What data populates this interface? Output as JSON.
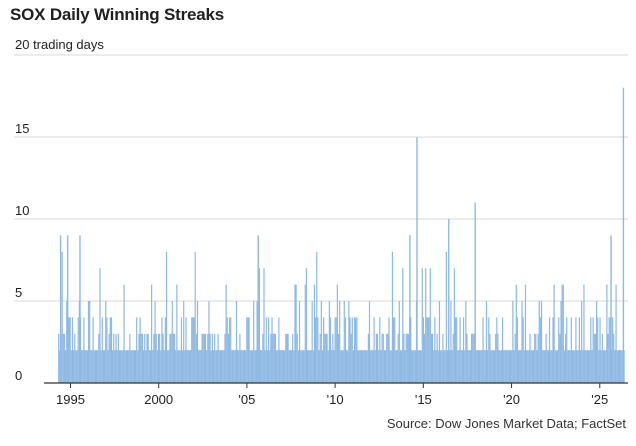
{
  "chart_data": {
    "type": "bar",
    "title": "SOX Daily Winning Streaks",
    "ylabel": "trading days",
    "xlabel": "",
    "ylim": [
      0,
      20
    ],
    "xlim": [
      1993.5,
      2026.6
    ],
    "y_ticks": [
      0,
      5,
      10,
      15,
      20
    ],
    "y_tick_labels": [
      "0",
      "5",
      "10",
      "15",
      "20 trading days"
    ],
    "x_ticks": [
      1995,
      2000,
      2005,
      2010,
      2015,
      2020,
      2025
    ],
    "x_tick_labels": [
      "1995",
      "2000",
      "'05",
      "'10",
      "'15",
      "'20",
      "'25"
    ],
    "grid": "horizontal",
    "bar_color": "#8fb9e3",
    "notable_streaks": [
      {
        "x": 1994.4,
        "y": 9
      },
      {
        "x": 1994.8,
        "y": 9
      },
      {
        "x": 1995.5,
        "y": 9
      },
      {
        "x": 2005.6,
        "y": 9
      },
      {
        "x": 2014.2,
        "y": 9
      },
      {
        "x": 2014.6,
        "y": 15
      },
      {
        "x": 2016.4,
        "y": 10
      },
      {
        "x": 2017.9,
        "y": 11
      },
      {
        "x": 2025.6,
        "y": 9
      },
      {
        "x": 2026.3,
        "y": 18
      }
    ]
  },
  "source": "Source: Dow Jones Market Data; FactSet",
  "colors": {
    "bar": "#8fb9e3",
    "grid": "#d9d9d9",
    "axis": "#333333"
  }
}
